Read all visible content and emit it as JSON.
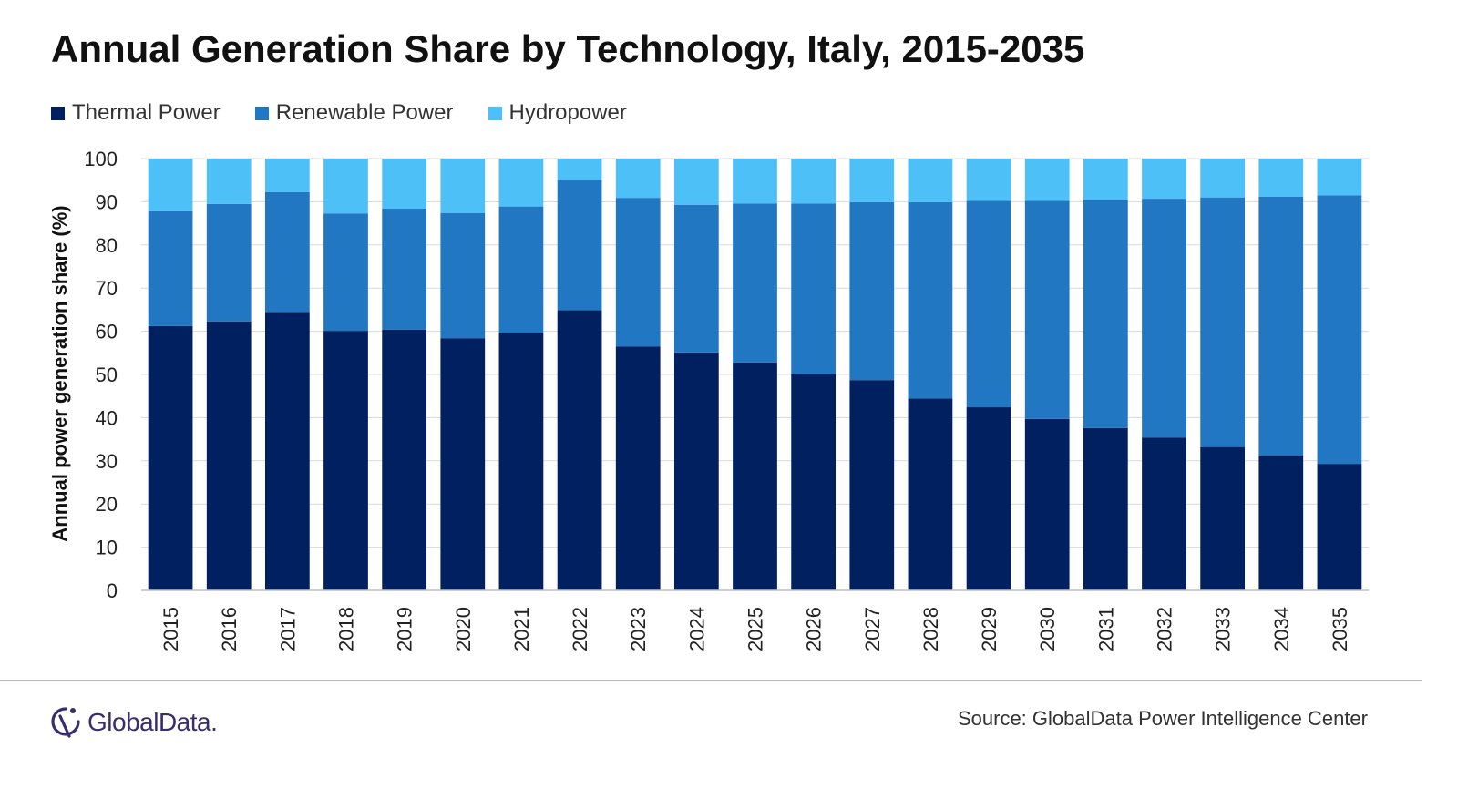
{
  "chart_data": {
    "type": "stacked-bar",
    "title": "Annual Generation Share by Technology, Italy, 2015-2035",
    "ylabel": "Annual power generation share (%)",
    "xlabel": "",
    "ylim": [
      0,
      100
    ],
    "yticks": [
      0,
      10,
      20,
      30,
      40,
      50,
      60,
      70,
      80,
      90,
      100
    ],
    "grid": true,
    "legend_position": "top-left",
    "categories": [
      "2015",
      "2016",
      "2017",
      "2018",
      "2019",
      "2020",
      "2021",
      "2022",
      "2023",
      "2024",
      "2025",
      "2026",
      "2027",
      "2028",
      "2029",
      "2030",
      "2031",
      "2032",
      "2033",
      "2034",
      "2035"
    ],
    "series": [
      {
        "name": "Thermal Power",
        "color": "#002060",
        "values": [
          61.2,
          62.3,
          64.5,
          60.1,
          60.4,
          58.4,
          59.6,
          64.9,
          56.5,
          55.1,
          52.8,
          50.0,
          48.7,
          44.4,
          42.4,
          39.7,
          37.6,
          35.4,
          33.2,
          31.3,
          29.3
        ]
      },
      {
        "name": "Renewable Power",
        "color": "#2277c3",
        "values": [
          26.6,
          27.2,
          27.7,
          27.2,
          28.0,
          29.0,
          29.3,
          30.1,
          34.4,
          34.2,
          36.8,
          39.6,
          41.2,
          45.5,
          47.8,
          50.5,
          52.9,
          55.3,
          57.8,
          59.9,
          62.2
        ]
      },
      {
        "name": "Hydropower",
        "color": "#4ec0f8",
        "values": [
          12.2,
          10.5,
          7.8,
          12.7,
          11.6,
          12.6,
          11.1,
          5.0,
          9.1,
          10.7,
          10.4,
          10.4,
          10.1,
          10.1,
          9.8,
          9.8,
          9.5,
          9.3,
          9.0,
          8.8,
          8.5
        ]
      }
    ]
  },
  "legend": {
    "thermal": "Thermal Power",
    "renewable": "Renewable Power",
    "hydro": "Hydropower"
  },
  "logo": {
    "text": "GlobalData."
  },
  "source": "Source: GlobalData Power Intelligence Center"
}
